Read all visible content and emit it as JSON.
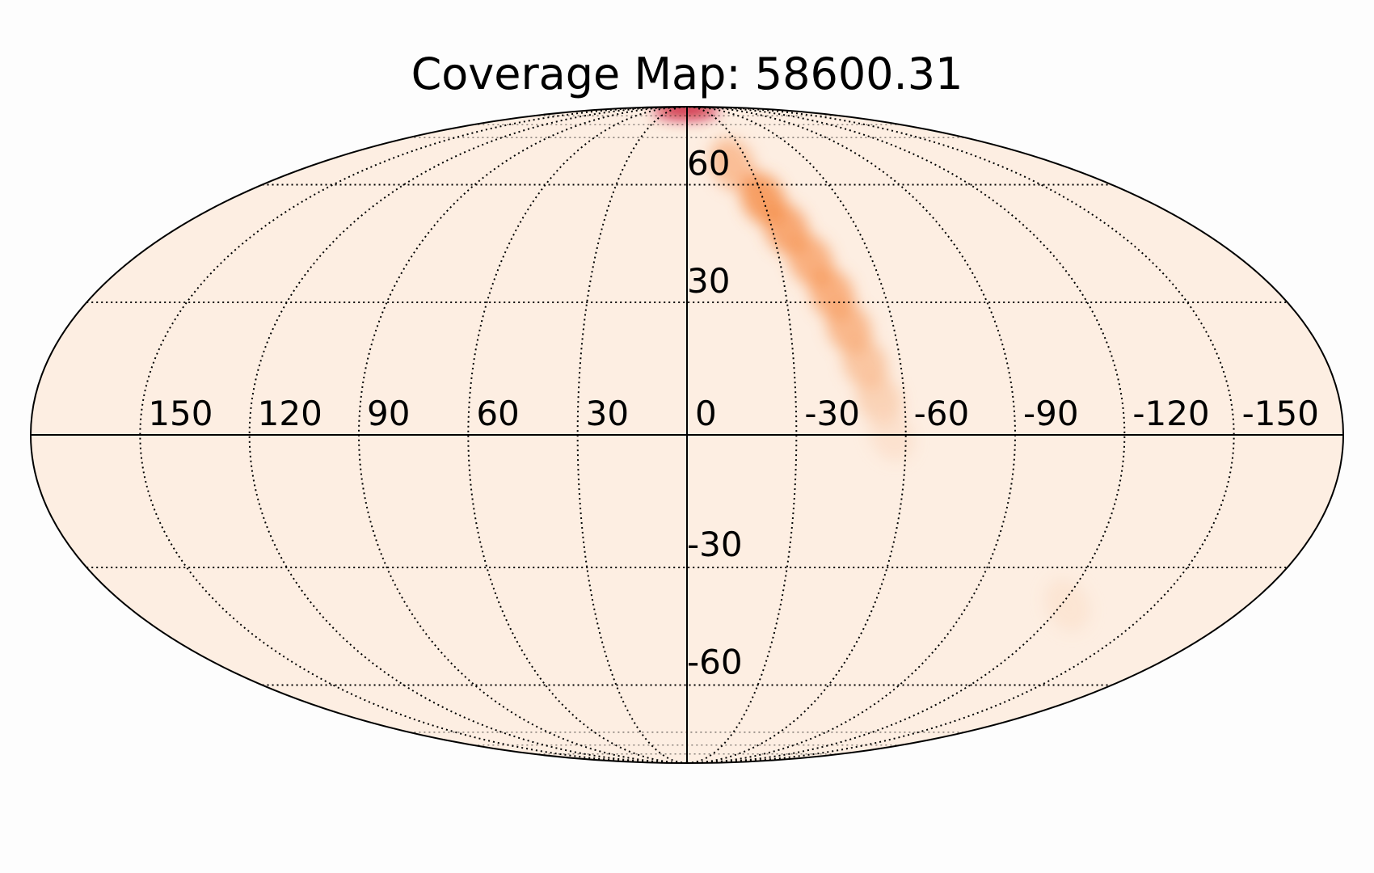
{
  "title": "Coverage Map: 58600.31",
  "chart_data": {
    "type": "heatmap",
    "projection": "mollweide",
    "title": "Coverage Map: 58600.31",
    "longitude_ticks": [
      150,
      120,
      90,
      60,
      30,
      0,
      -30,
      -60,
      -90,
      -120,
      -150
    ],
    "latitude_ticks": [
      60,
      30,
      -30,
      -60
    ],
    "longitude_labels": [
      "150",
      "120",
      "90",
      "60",
      "30",
      "0",
      "-30",
      "-60",
      "-90",
      "-120",
      "-150"
    ],
    "latitude_labels": [
      "60",
      "30",
      "-30",
      "-60"
    ],
    "grid": true,
    "colormap": "white-to-red (OrRd)",
    "colors": {
      "background": "#fdeee2",
      "high": "#c8102e",
      "mid": "#f47a2a",
      "grid": "#000000"
    },
    "hotspots": [
      {
        "lon": 2,
        "lat": 87,
        "intensity": 1.0
      },
      {
        "lon": -22,
        "lat": 66,
        "intensity": 0.45
      },
      {
        "lon": -30,
        "lat": 56,
        "intensity": 0.65
      },
      {
        "lon": -35,
        "lat": 48,
        "intensity": 0.6
      },
      {
        "lon": -40,
        "lat": 40,
        "intensity": 0.55
      },
      {
        "lon": -44,
        "lat": 32,
        "intensity": 0.55
      },
      {
        "lon": -47,
        "lat": 24,
        "intensity": 0.5
      },
      {
        "lon": -50,
        "lat": 16,
        "intensity": 0.4
      },
      {
        "lon": -53,
        "lat": 8,
        "intensity": 0.3
      },
      {
        "lon": -56,
        "lat": 0,
        "intensity": 0.15
      },
      {
        "lon": -122,
        "lat": -39,
        "intensity": 0.12
      }
    ]
  }
}
